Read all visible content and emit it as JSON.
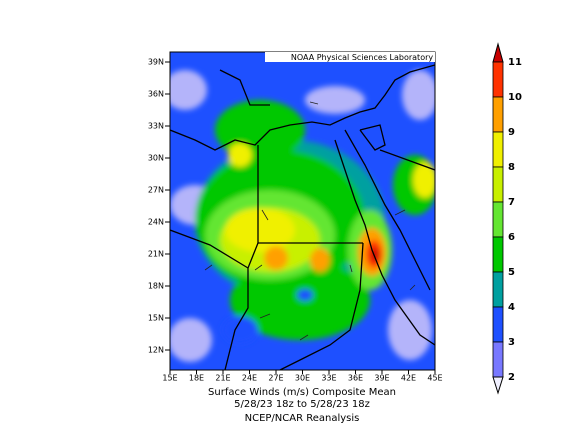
{
  "header": {
    "title": "NOAA Physical Sciences Laboratory"
  },
  "axes": {
    "lat_labels": [
      "39N",
      "36N",
      "33N",
      "30N",
      "27N",
      "24N",
      "21N",
      "18N",
      "15N",
      "12N"
    ],
    "lon_labels": [
      "15E",
      "18E",
      "21E",
      "24E",
      "27E",
      "30E",
      "33E",
      "36E",
      "39E",
      "42E",
      "45E"
    ]
  },
  "colorbar": {
    "levels": [
      11,
      10,
      9,
      8,
      7,
      6,
      5,
      4,
      3,
      2
    ]
  },
  "caption": {
    "line1": "Surface Winds (m/s)    Composite Mean",
    "line2": "5/28/23 18z  to 5/28/23 18z",
    "line3": "NCEP/NCAR Reanalysis"
  }
}
